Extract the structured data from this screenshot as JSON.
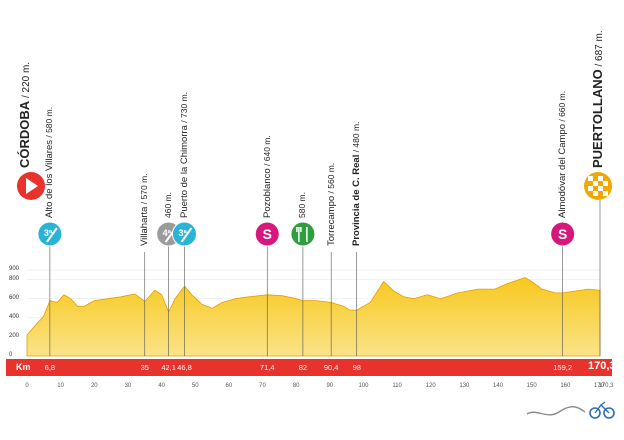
{
  "start": {
    "name": "CÓRDOBA",
    "alt": " / 220 m.",
    "km": 0
  },
  "finish": {
    "name": "PUERTOLLANO",
    "alt": " / 687 m.",
    "km": "170,3"
  },
  "waypoints": [
    {
      "name": "Alto de los Villares",
      "alt": " / 580 m.",
      "km": 6.8,
      "km_label": "6,8",
      "icon": "climb-3",
      "icon_text": "3ª"
    },
    {
      "name": "Villaharta",
      "alt": " / 570 m.",
      "km": 35,
      "km_label": "35"
    },
    {
      "name": "",
      "alt": "460 m.",
      "km": 42.1,
      "km_label": "42,1",
      "icon": "climb-4",
      "icon_text": "4ª"
    },
    {
      "name": "Puerto de la Chimorra",
      "alt": " / 730 m.",
      "km": 46.8,
      "km_label": "46,8",
      "icon": "climb-3",
      "icon_text": "3ª"
    },
    {
      "name": "Pozoblanco",
      "alt": " / 640 m.",
      "km": 71.4,
      "km_label": "71,4",
      "icon": "sprint",
      "icon_text": "S"
    },
    {
      "name": "",
      "alt": "580 m.",
      "km": 82,
      "km_label": "82",
      "icon": "feed"
    },
    {
      "name": "Torrecampo",
      "alt": " / 560 m.",
      "km": 90.4,
      "km_label": "90,4"
    },
    {
      "name": "Provincia de C. Real",
      "alt": " / 480 m.",
      "km": 98,
      "km_label": "98",
      "bold": true
    },
    {
      "name": "Almodóvar del Campo",
      "alt": " / 660 m.",
      "km": 159.2,
      "km_label": "159,2",
      "icon": "sprint",
      "icon_text": "S"
    }
  ],
  "bar": {
    "label": "Km",
    "total": "170,3"
  },
  "y_ticks": [
    "900",
    "800",
    "600",
    "400",
    "200",
    "0"
  ],
  "x_ticks": [
    "0",
    "10",
    "20",
    "30",
    "40",
    "50",
    "60",
    "70",
    "80",
    "90",
    "100",
    "110",
    "120",
    "130",
    "140",
    "150",
    "160",
    "170",
    "170,3"
  ],
  "profile": {
    "km": [
      0,
      2,
      5,
      6.8,
      9,
      11,
      13,
      15,
      17,
      20,
      24,
      28,
      32,
      35,
      38,
      40,
      42.1,
      44,
      46.8,
      49,
      52,
      55,
      58,
      62,
      66,
      71.4,
      76,
      80,
      82,
      86,
      90.4,
      94,
      96,
      98,
      102,
      106,
      109,
      112,
      115,
      119,
      123,
      128,
      134,
      139,
      143,
      148,
      150,
      153,
      157,
      159.2,
      163,
      167,
      170.3
    ],
    "alt": [
      220,
      300,
      420,
      580,
      560,
      640,
      600,
      520,
      520,
      580,
      600,
      620,
      650,
      570,
      690,
      640,
      460,
      600,
      730,
      640,
      540,
      500,
      560,
      600,
      620,
      640,
      630,
      600,
      580,
      580,
      560,
      520,
      480,
      480,
      560,
      780,
      680,
      620,
      600,
      640,
      600,
      660,
      700,
      700,
      760,
      820,
      780,
      700,
      660,
      660,
      680,
      700,
      687
    ]
  },
  "colors": {
    "profile_top": "#f7c81e",
    "profile_bottom": "#fbe388",
    "bar": "#e8322c",
    "start_marker": "#e8322c",
    "climb": "#29b4d6",
    "climb_4": "#9b9b9b",
    "sprint": "#d6187e",
    "feed": "#2e9e3e",
    "finish_marker": "#f2a800"
  },
  "watermark_icon": "cyclist-logo-icon"
}
